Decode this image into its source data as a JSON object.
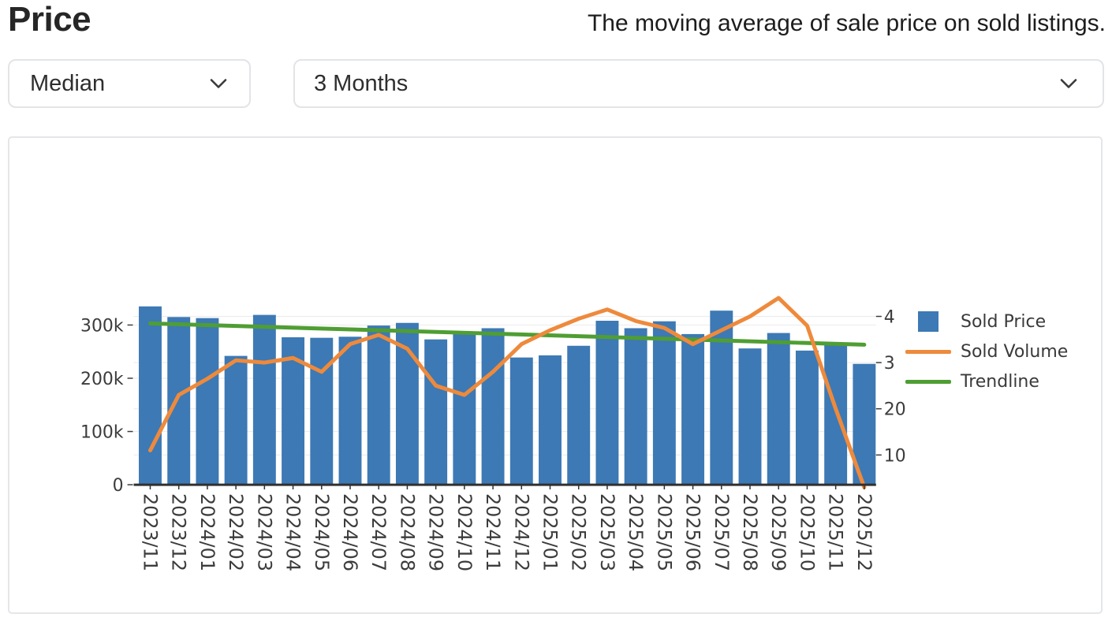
{
  "header": {
    "title": "Price",
    "subtitle": "The moving average of sale price on sold listings."
  },
  "controls": {
    "stat_dropdown": {
      "value": "Median"
    },
    "range_dropdown": {
      "value": "3 Months"
    }
  },
  "legend": {
    "items": [
      {
        "label": "Sold Price",
        "marker": "square",
        "color": "#3d79b4"
      },
      {
        "label": "Sold Volume",
        "marker": "line",
        "color": "#ee8a3c"
      },
      {
        "label": "Trendline",
        "marker": "line",
        "color": "#4f9e33"
      }
    ]
  },
  "colors": {
    "bar_blue": "#3d79b4",
    "line_orange": "#ee8a3c",
    "line_green": "#4f9e33",
    "axis_text": "#3c3c3c",
    "axis_line": "#303030",
    "gridline": "#ededed"
  },
  "chart_data": {
    "type": "bar",
    "title": "",
    "xlabel": "",
    "ylabel": "",
    "grid": true,
    "legend_position": "right",
    "categories": [
      "2023/11",
      "2023/12",
      "2024/01",
      "2024/02",
      "2024/03",
      "2024/04",
      "2024/05",
      "2024/06",
      "2024/07",
      "2024/08",
      "2024/09",
      "2024/10",
      "2024/11",
      "2024/12",
      "2025/01",
      "2025/02",
      "2025/03",
      "2025/04",
      "2025/05",
      "2025/06",
      "2025/07",
      "2025/08",
      "2025/09",
      "2025/10",
      "2025/11",
      "2025/12"
    ],
    "series": [
      {
        "name": "Sold Price",
        "type": "bar",
        "axis": "left",
        "color": "#3d79b4",
        "values": [
          335000,
          315000,
          313000,
          242000,
          319000,
          277000,
          276000,
          278000,
          299000,
          304000,
          273000,
          283000,
          294000,
          239000,
          243000,
          261000,
          308000,
          294000,
          307000,
          283000,
          327000,
          256000,
          285000,
          252000,
          264000,
          227000
        ]
      },
      {
        "name": "Sold Volume",
        "type": "line",
        "axis": "right",
        "color": "#ee8a3c",
        "values": [
          11,
          23,
          26.5,
          30.5,
          30,
          31,
          28,
          34,
          36,
          33,
          25,
          23,
          28,
          34,
          37,
          39.5,
          41.5,
          39,
          37.5,
          34,
          37,
          40,
          44,
          38,
          20,
          3
        ]
      },
      {
        "name": "Trendline",
        "type": "line",
        "axis": "left",
        "color": "#4f9e33",
        "endpoints_only": true,
        "values": [
          303000,
          263000
        ]
      }
    ],
    "left_axis": {
      "tick_labels": [
        "0",
        "100k",
        "200k",
        "300k"
      ],
      "tick_values": [
        0,
        100000,
        200000,
        300000
      ],
      "range": [
        0,
        345000
      ]
    },
    "right_axis": {
      "tick_values": [
        10,
        20,
        30,
        40
      ],
      "visible_tick_labels": [
        "10",
        "20",
        "3",
        "4"
      ],
      "range": [
        0,
        47
      ]
    }
  }
}
